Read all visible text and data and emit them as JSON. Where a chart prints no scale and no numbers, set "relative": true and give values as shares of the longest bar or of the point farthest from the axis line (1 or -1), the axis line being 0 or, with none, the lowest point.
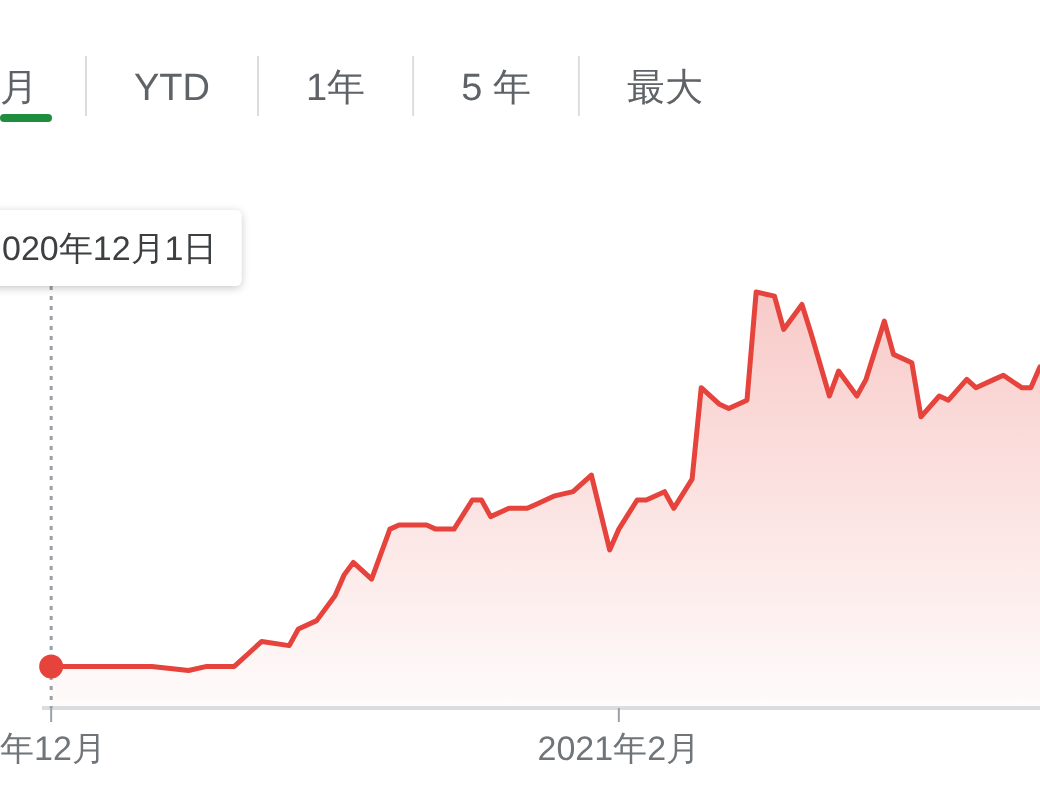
{
  "chart_data": {
    "type": "area",
    "relative": true,
    "color": "#e5433b",
    "xlim": [
      "2020-11-30",
      "2021-03-19"
    ],
    "xticks": [
      {
        "value": "2020-12-01",
        "label": "年12月"
      },
      {
        "value": "2021-02-01",
        "label": "2021年2月"
      }
    ],
    "x": [
      "2020-12-01",
      "2020-12-07",
      "2020-12-12",
      "2020-12-16",
      "2020-12-18",
      "2020-12-21",
      "2020-12-23",
      "2020-12-24",
      "2020-12-27",
      "2020-12-28",
      "2020-12-30",
      "2021-01-01",
      "2021-01-02",
      "2021-01-03",
      "2021-01-05",
      "2021-01-07",
      "2021-01-08",
      "2021-01-11",
      "2021-01-12",
      "2021-01-14",
      "2021-01-16",
      "2021-01-17",
      "2021-01-18",
      "2021-01-20",
      "2021-01-22",
      "2021-01-23",
      "2021-01-25",
      "2021-01-27",
      "2021-01-29",
      "2021-01-31",
      "2021-02-01",
      "2021-02-03",
      "2021-02-04",
      "2021-02-06",
      "2021-02-07",
      "2021-02-09",
      "2021-02-10",
      "2021-02-12",
      "2021-02-13",
      "2021-02-15",
      "2021-02-16",
      "2021-02-18",
      "2021-02-19",
      "2021-02-21",
      "2021-02-22",
      "2021-02-24",
      "2021-02-25",
      "2021-02-27",
      "2021-02-28",
      "2021-03-02",
      "2021-03-03",
      "2021-03-05",
      "2021-03-06",
      "2021-03-08",
      "2021-03-09",
      "2021-03-11",
      "2021-03-12",
      "2021-03-14",
      "2021-03-15",
      "2021-03-17",
      "2021-03-18",
      "2021-03-19"
    ],
    "values": [
      0.1,
      0.1,
      0.1,
      0.09,
      0.1,
      0.1,
      0.14,
      0.16,
      0.15,
      0.19,
      0.21,
      0.27,
      0.32,
      0.35,
      0.31,
      0.43,
      0.44,
      0.44,
      0.43,
      0.43,
      0.5,
      0.5,
      0.46,
      0.48,
      0.48,
      0.49,
      0.51,
      0.52,
      0.56,
      0.38,
      0.43,
      0.5,
      0.5,
      0.52,
      0.48,
      0.55,
      0.77,
      0.73,
      0.72,
      0.74,
      1,
      0.99,
      0.91,
      0.97,
      0.9,
      0.75,
      0.81,
      0.75,
      0.79,
      0.93,
      0.85,
      0.83,
      0.7,
      0.75,
      0.74,
      0.79,
      0.77,
      0.79,
      0.8,
      0.77,
      0.77,
      0.82
    ],
    "ref_lines": [
      {
        "axis": "x",
        "value": "2020-12-01",
        "label": "020年12月1日",
        "color": "#9aa0a6",
        "line_style": "dotted"
      }
    ],
    "annotations": [
      "月",
      "YTD",
      "1年",
      "5 年",
      "最大"
    ]
  }
}
